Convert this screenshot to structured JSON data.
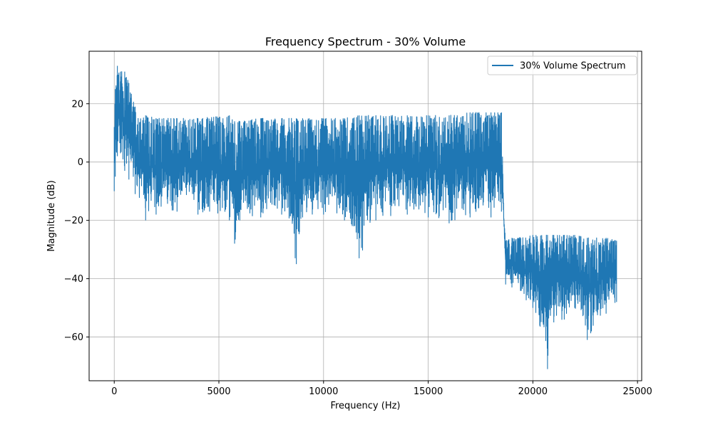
{
  "chart_data": {
    "type": "line",
    "title": "Frequency Spectrum - 30% Volume",
    "xlabel": "Frequency (Hz)",
    "ylabel": "Magnitude (dB)",
    "xlim": [
      -1200,
      25200
    ],
    "ylim": [
      -75,
      38
    ],
    "xticks": [
      0,
      5000,
      10000,
      15000,
      20000,
      25000
    ],
    "yticks": [
      -60,
      -40,
      -20,
      0,
      20
    ],
    "grid": true,
    "legend_position": "top-right",
    "series": [
      {
        "name": "30% Volume Spectrum",
        "color": "#1f77b4",
        "envelope": [
          {
            "x": 0,
            "min": -10,
            "max": 12
          },
          {
            "x": 50,
            "min": -5,
            "max": 25
          },
          {
            "x": 150,
            "min": 2,
            "max": 33
          },
          {
            "x": 300,
            "min": 3,
            "max": 31
          },
          {
            "x": 500,
            "min": -3,
            "max": 31
          },
          {
            "x": 700,
            "min": -6,
            "max": 27
          },
          {
            "x": 1000,
            "min": -11,
            "max": 19
          },
          {
            "x": 1500,
            "min": -20,
            "max": 16
          },
          {
            "x": 2000,
            "min": -18,
            "max": 15
          },
          {
            "x": 3000,
            "min": -17,
            "max": 15
          },
          {
            "x": 4000,
            "min": -18,
            "max": 15
          },
          {
            "x": 5500,
            "min": -20,
            "max": 16
          },
          {
            "x": 5750,
            "min": -28,
            "max": 14
          },
          {
            "x": 6000,
            "min": -20,
            "max": 14
          },
          {
            "x": 7000,
            "min": -19,
            "max": 15
          },
          {
            "x": 8000,
            "min": -18,
            "max": 15
          },
          {
            "x": 8700,
            "min": -35,
            "max": 15
          },
          {
            "x": 9000,
            "min": -19,
            "max": 15
          },
          {
            "x": 10000,
            "min": -18,
            "max": 15
          },
          {
            "x": 11000,
            "min": -20,
            "max": 15
          },
          {
            "x": 11700,
            "min": -33,
            "max": 16
          },
          {
            "x": 12500,
            "min": -20,
            "max": 16
          },
          {
            "x": 14000,
            "min": -18,
            "max": 16
          },
          {
            "x": 15000,
            "min": -19,
            "max": 16
          },
          {
            "x": 16000,
            "min": -21,
            "max": 16
          },
          {
            "x": 17000,
            "min": -19,
            "max": 17
          },
          {
            "x": 18000,
            "min": -19,
            "max": 17
          },
          {
            "x": 18500,
            "min": -17,
            "max": 17
          },
          {
            "x": 18620,
            "min": -22,
            "max": -20
          },
          {
            "x": 18700,
            "min": -42,
            "max": -27
          },
          {
            "x": 19000,
            "min": -43,
            "max": -26
          },
          {
            "x": 20000,
            "min": -50,
            "max": -25
          },
          {
            "x": 20700,
            "min": -71,
            "max": -25
          },
          {
            "x": 21000,
            "min": -55,
            "max": -25
          },
          {
            "x": 21500,
            "min": -54,
            "max": -25
          },
          {
            "x": 22000,
            "min": -50,
            "max": -25
          },
          {
            "x": 22600,
            "min": -61,
            "max": -26
          },
          {
            "x": 23500,
            "min": -52,
            "max": -26
          },
          {
            "x": 24000,
            "min": -48,
            "max": -27
          }
        ]
      }
    ]
  }
}
